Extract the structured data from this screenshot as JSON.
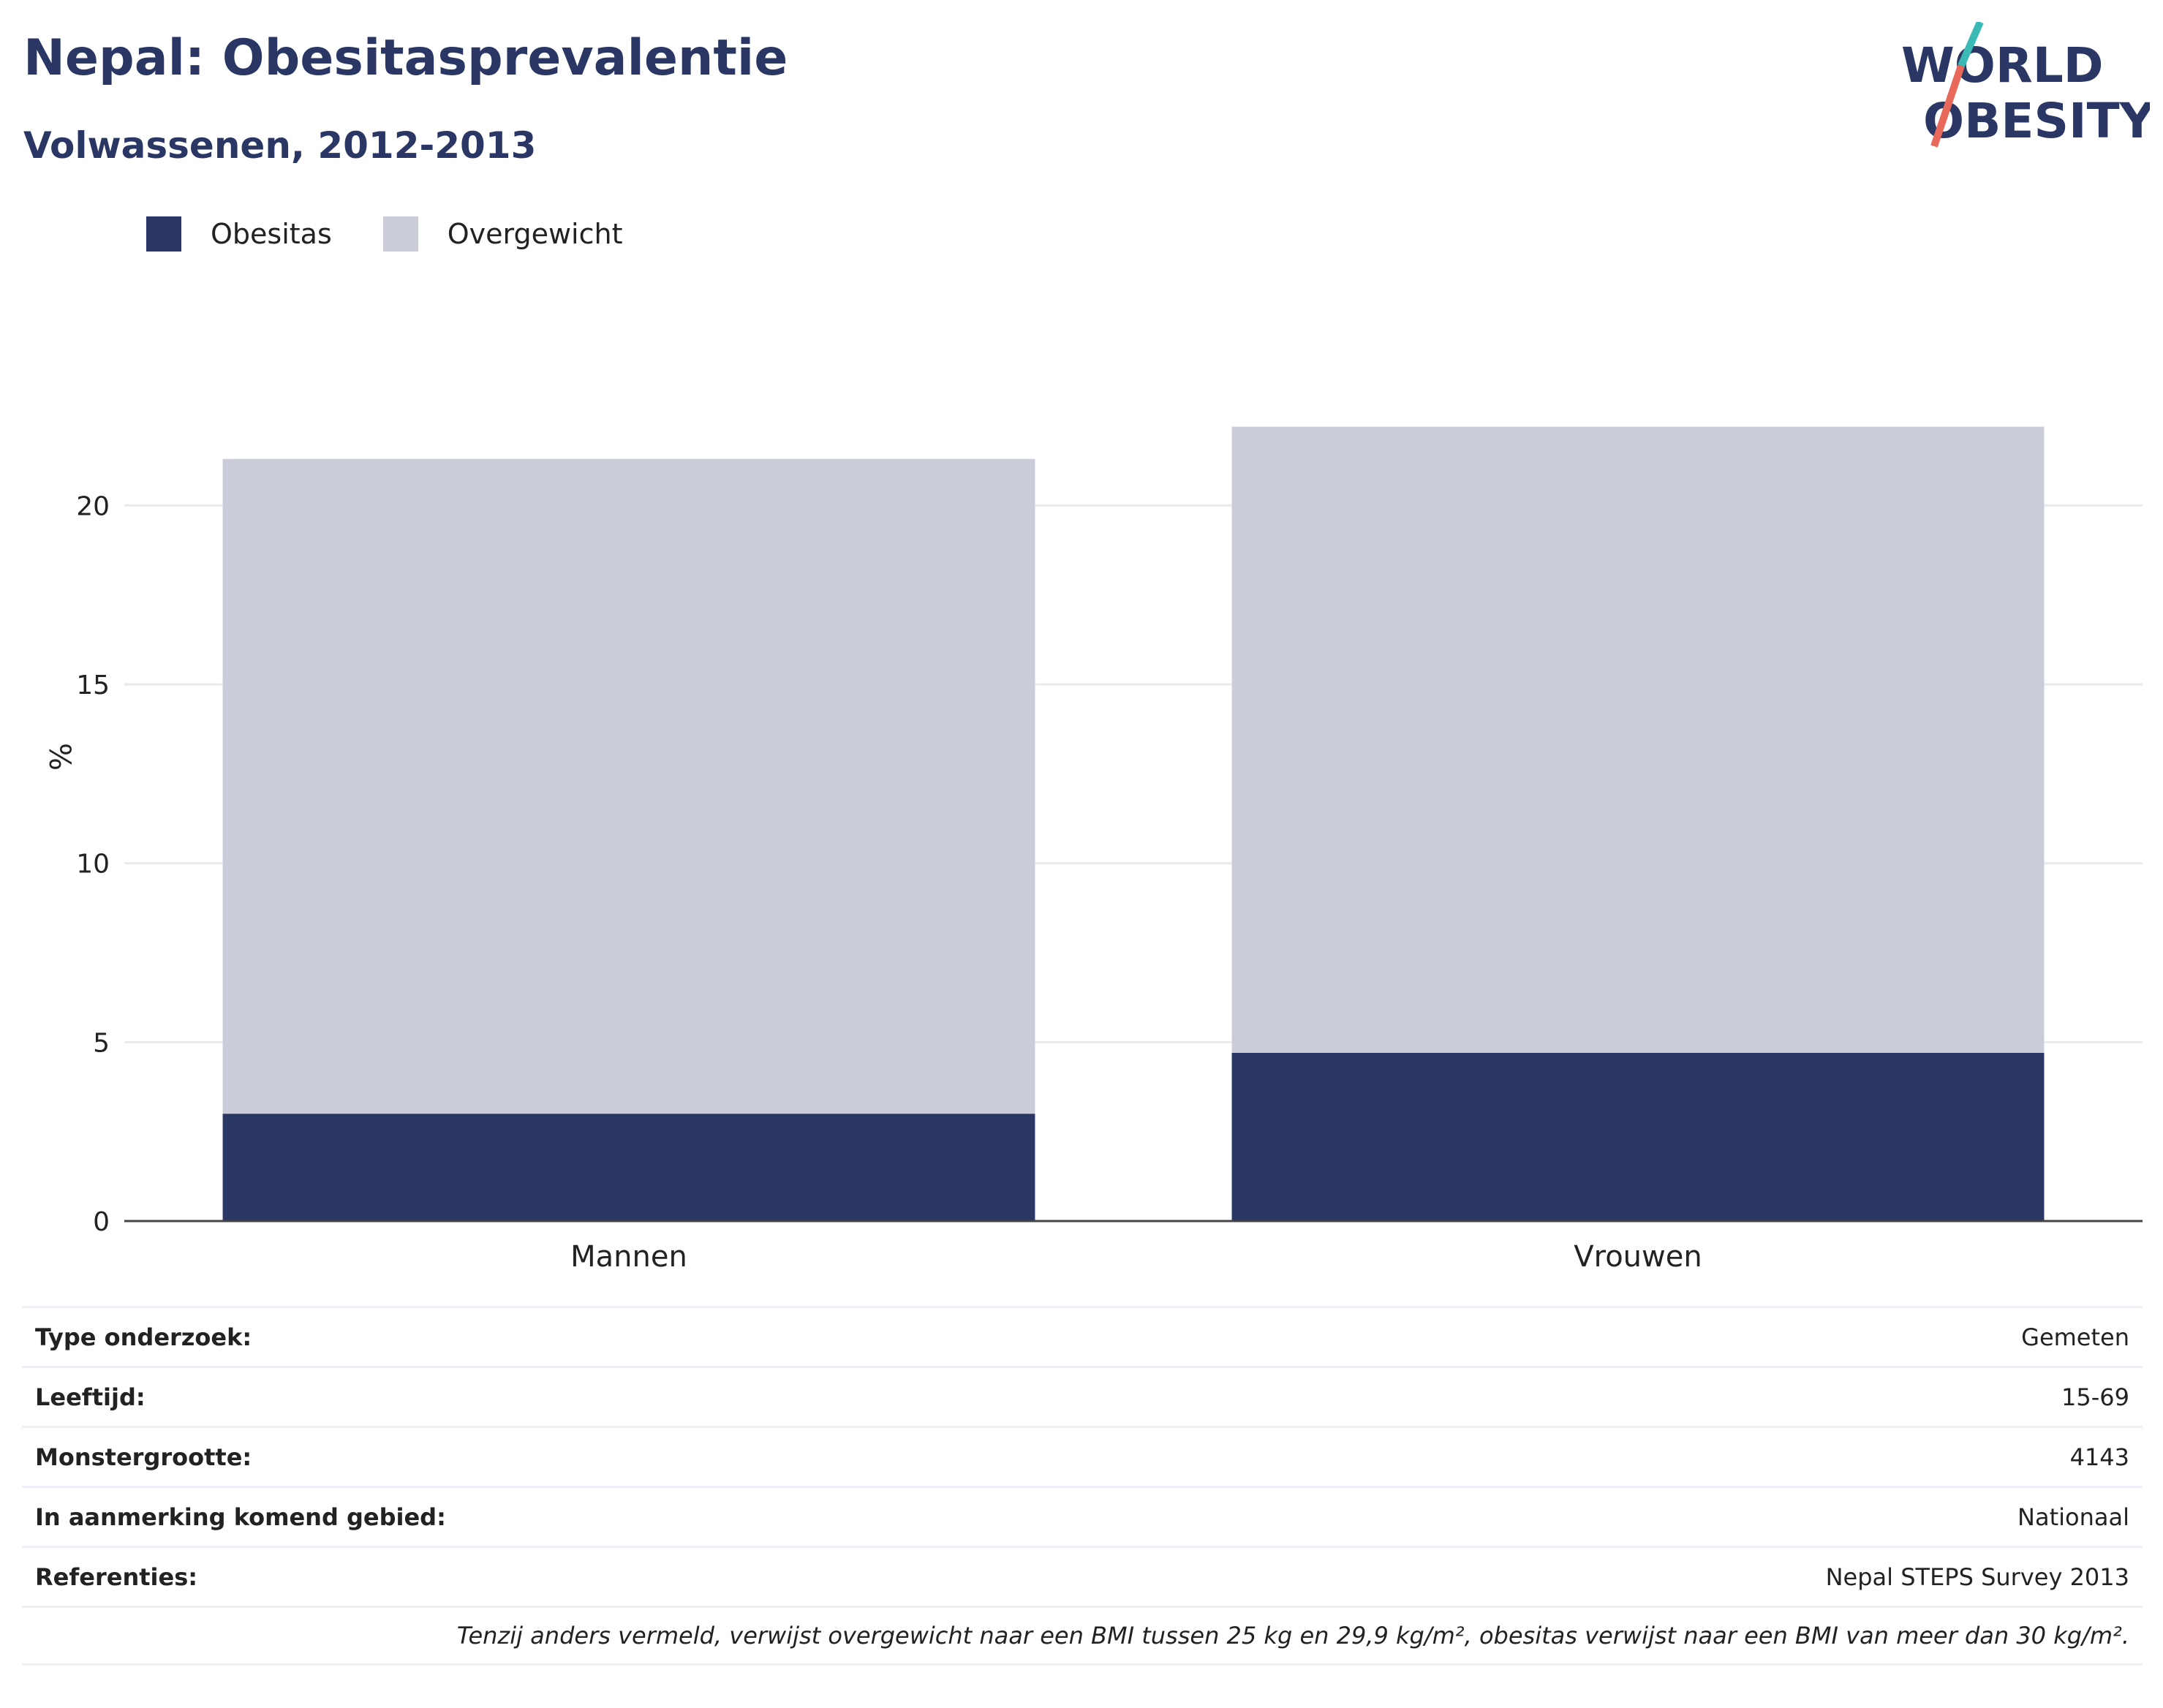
{
  "header": {
    "title": "Nepal: Obesitasprevalentie",
    "subtitle": "Volwassenen, 2012-2013",
    "logo_line1": "WORLD",
    "logo_line2": "OBESITY"
  },
  "colors": {
    "obesitas": "#2a3664",
    "overgewicht": "#cacdd9",
    "title": "#2a3664",
    "logo_teal": "#3bb9b4",
    "logo_coral": "#e8695a"
  },
  "chart_data": {
    "type": "bar",
    "stacked": true,
    "categories": [
      "Mannen",
      "Vrouwen"
    ],
    "series": [
      {
        "name": "Obesitas",
        "values": [
          3.0,
          4.7
        ]
      },
      {
        "name": "Overgewicht",
        "values": [
          18.3,
          17.5
        ]
      }
    ],
    "ylabel": "%",
    "ylim": [
      0,
      23.5
    ],
    "yticks": [
      0,
      5,
      10,
      15,
      20
    ],
    "grid": true,
    "legend": "top-left"
  },
  "info": {
    "rows": [
      {
        "label": "Type onderzoek:",
        "value": "Gemeten"
      },
      {
        "label": "Leeftijd:",
        "value": "15-69"
      },
      {
        "label": "Monstergrootte:",
        "value": "4143"
      },
      {
        "label": "In aanmerking komend gebied:",
        "value": "Nationaal"
      },
      {
        "label": "Referenties:",
        "value": "Nepal STEPS Survey 2013"
      }
    ],
    "note": "Tenzij anders vermeld, verwijst overgewicht naar een BMI tussen 25 kg en 29,9 kg/m², obesitas verwijst naar een BMI van meer dan 30 kg/m²."
  }
}
